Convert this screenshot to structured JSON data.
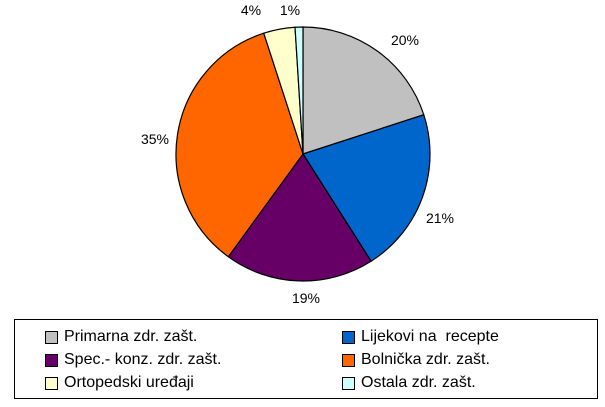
{
  "chart_data": {
    "type": "pie",
    "slices": [
      {
        "label": "Primarna zdr. zašt.",
        "percent_label": "20%",
        "value": 20,
        "color": "#c0c0c0"
      },
      {
        "label": "Lijekovi na  recepte",
        "percent_label": "21%",
        "value": 21,
        "color": "#0066cc"
      },
      {
        "label": "Spec.- konz. zdr. zašt.",
        "percent_label": "19%",
        "value": 19,
        "color": "#660066"
      },
      {
        "label": "Bolnička zdr. zašt.",
        "percent_label": "35%",
        "value": 35,
        "color": "#ff6600"
      },
      {
        "label": "Ortopedski uređaji",
        "percent_label": "4%",
        "value": 4,
        "color": "#ffffcc"
      },
      {
        "label": "Ostala zdr. zašt.",
        "percent_label": "1%",
        "value": 1,
        "color": "#ccffff"
      }
    ],
    "legend_position": "bottom",
    "start_angle_deg": 0,
    "direction": "clockwise"
  }
}
